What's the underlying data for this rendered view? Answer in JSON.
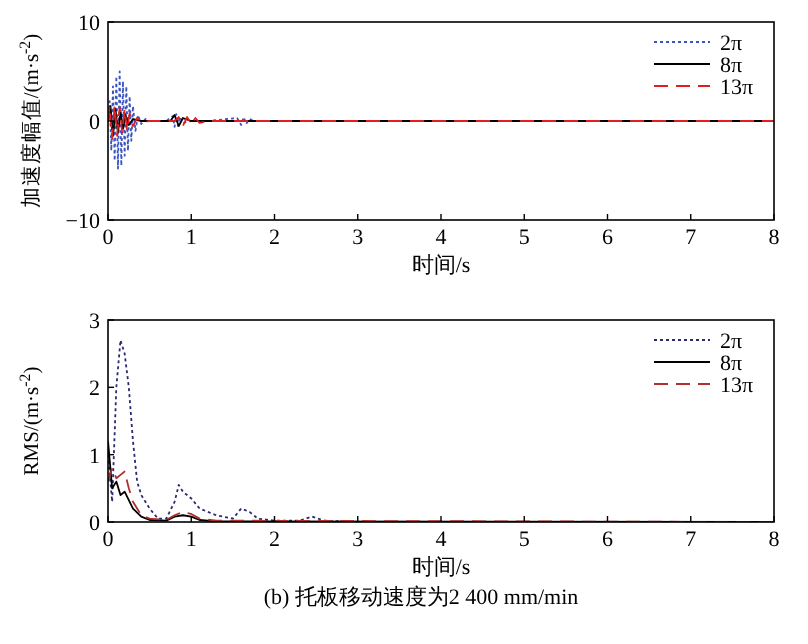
{
  "chart_data": [
    {
      "type": "line",
      "xlabel": "时间/s",
      "ylabel": "加速度幅值/(m·s$^{-2}$)",
      "xlim": [
        0,
        8
      ],
      "xticks": [
        0,
        1,
        2,
        3,
        4,
        5,
        6,
        7,
        8
      ],
      "ylim": [
        -10,
        10
      ],
      "yticks": [
        -10,
        0,
        10
      ],
      "legend": "top right",
      "grid": false,
      "series": [
        {
          "name": "2π",
          "color": "#3a55c0",
          "line_style": "dotted",
          "x": [
            0,
            0.02,
            0.04,
            0.06,
            0.08,
            0.1,
            0.12,
            0.14,
            0.16,
            0.18,
            0.2,
            0.22,
            0.24,
            0.26,
            0.28,
            0.3,
            0.33,
            0.36,
            0.4,
            0.45,
            0.5,
            0.7,
            0.78,
            0.8,
            0.82,
            0.84,
            0.86,
            0.9,
            1.0,
            1.2,
            1.55,
            1.6,
            1.63,
            1.66,
            1.7,
            1.75
          ],
          "values": [
            0,
            2,
            -3,
            3.5,
            -4,
            4.5,
            -4.8,
            5,
            -4.5,
            4,
            -3.5,
            3.5,
            -3,
            2.5,
            -2,
            1.5,
            -1,
            0.6,
            -0.3,
            0.2,
            0,
            0,
            0.5,
            -0.6,
            0.7,
            -0.5,
            0.4,
            -0.2,
            0,
            0,
            0.3,
            -0.4,
            0.4,
            -0.3,
            0.2,
            0
          ]
        },
        {
          "name": "8π",
          "color": "#000000",
          "line_style": "solid",
          "x": [
            0,
            0.03,
            0.06,
            0.09,
            0.12,
            0.15,
            0.18,
            0.21,
            0.25,
            0.3,
            0.4,
            0.75,
            0.8,
            0.85,
            0.9,
            1.0,
            8
          ],
          "values": [
            0,
            1.5,
            -1.5,
            1.2,
            -1.2,
            1,
            -0.8,
            0.6,
            -0.4,
            0.2,
            0,
            0,
            0.6,
            -0.5,
            0.3,
            0,
            0
          ]
        },
        {
          "name": "13π",
          "color": "#e02020",
          "line_style": "dashed",
          "x": [
            0,
            0.02,
            0.05,
            0.08,
            0.11,
            0.14,
            0.17,
            0.2,
            0.23,
            0.26,
            0.3,
            0.35,
            0.4,
            0.5,
            0.8,
            0.85,
            0.9,
            0.95,
            1.0,
            1.05,
            1.1,
            1.2,
            8
          ],
          "values": [
            0,
            1.5,
            -1.8,
            1.6,
            -1.5,
            1.4,
            -1.2,
            1.2,
            -1,
            0.8,
            -0.5,
            0.3,
            -0.1,
            0,
            0,
            0.4,
            -0.5,
            0.4,
            -0.3,
            0.3,
            -0.2,
            0,
            0
          ]
        }
      ]
    },
    {
      "type": "line",
      "xlabel": "时间/s",
      "ylabel": "RMS/(m·s$^{-2}$)",
      "xlim": [
        0,
        8
      ],
      "xticks": [
        0,
        1,
        2,
        3,
        4,
        5,
        6,
        7,
        8
      ],
      "ylim": [
        0,
        3
      ],
      "yticks": [
        0,
        1,
        2,
        3
      ],
      "legend": "top right",
      "grid": false,
      "annotations": [
        "(b) 托板移动速度为2 400 mm/min"
      ],
      "series": [
        {
          "name": "2π",
          "color": "#2a2a70",
          "line_style": "dotted",
          "x": [
            0,
            0.05,
            0.1,
            0.15,
            0.2,
            0.25,
            0.3,
            0.35,
            0.4,
            0.5,
            0.6,
            0.7,
            0.8,
            0.85,
            0.9,
            1.0,
            1.1,
            1.3,
            1.5,
            1.6,
            1.7,
            1.8,
            2.0,
            2.3,
            2.45,
            2.6,
            3,
            8
          ],
          "values": [
            1.0,
            0.3,
            2.0,
            2.7,
            2.5,
            2.0,
            1.2,
            0.6,
            0.4,
            0.2,
            0.05,
            0.05,
            0.3,
            0.55,
            0.45,
            0.35,
            0.2,
            0.1,
            0.05,
            0.2,
            0.15,
            0.05,
            0.02,
            0.02,
            0.08,
            0.02,
            0,
            0
          ]
        },
        {
          "name": "8π",
          "color": "#000000",
          "line_style": "solid",
          "x": [
            0,
            0.05,
            0.1,
            0.15,
            0.2,
            0.3,
            0.4,
            0.5,
            0.7,
            0.8,
            0.9,
            1.0,
            1.1,
            1.3,
            8
          ],
          "values": [
            1.2,
            0.5,
            0.6,
            0.4,
            0.45,
            0.2,
            0.08,
            0.03,
            0.02,
            0.08,
            0.1,
            0.08,
            0.03,
            0.01,
            0
          ]
        },
        {
          "name": "13π",
          "color": "#b03030",
          "line_style": "dashed",
          "x": [
            0,
            0.05,
            0.1,
            0.15,
            0.2,
            0.25,
            0.3,
            0.4,
            0.5,
            0.7,
            0.8,
            0.9,
            1.0,
            1.1,
            1.3,
            8
          ],
          "values": [
            0.6,
            0.8,
            0.65,
            0.7,
            0.75,
            0.5,
            0.3,
            0.1,
            0.05,
            0.03,
            0.1,
            0.15,
            0.12,
            0.05,
            0.02,
            0
          ]
        }
      ]
    }
  ]
}
